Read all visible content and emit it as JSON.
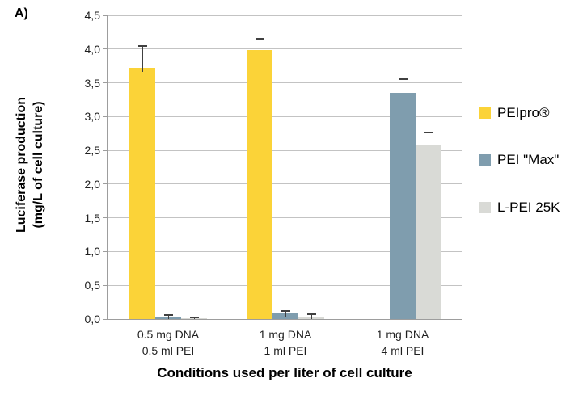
{
  "panel_label": "A)",
  "chart_data": {
    "type": "bar",
    "title": "",
    "ylabel_line1": "Luciferase production",
    "ylabel_line2": "(mg/L of cell culture)",
    "xlabel": "Conditions used per liter of cell culture",
    "ylim": [
      0,
      4.5
    ],
    "ytick_step": 0.5,
    "ytick_labels": [
      "0,0",
      "0,5",
      "1,0",
      "1,5",
      "2,0",
      "2,5",
      "3,0",
      "3,5",
      "4,0",
      "4,5"
    ],
    "grid": true,
    "legend_position": "right",
    "categories": [
      {
        "line1": "0.5 mg DNA",
        "line2": "0.5 ml PEI"
      },
      {
        "line1": "1 mg DNA",
        "line2": "1 ml PEI"
      },
      {
        "line1": "1 mg DNA",
        "line2": "4 ml PEI"
      }
    ],
    "series": [
      {
        "name": "PEIpro®",
        "color": "#FBD338",
        "values": [
          3.72,
          3.98,
          null
        ],
        "errors": [
          0.33,
          0.17,
          null
        ]
      },
      {
        "name": "PEI \"Max\"",
        "color": "#7F9DAE",
        "values": [
          0.03,
          0.08,
          3.35
        ],
        "errors": [
          0.03,
          0.04,
          0.2
        ]
      },
      {
        "name": "L-PEI 25K",
        "color": "#D9DAD6",
        "values": [
          0.01,
          0.04,
          2.57
        ],
        "errors": [
          0.01,
          0.03,
          0.19
        ]
      }
    ]
  },
  "colors": {
    "gridline": "#c3c3c3",
    "axis": "#9d9d9d",
    "error_bar": "#404040",
    "background": "#ffffff"
  }
}
